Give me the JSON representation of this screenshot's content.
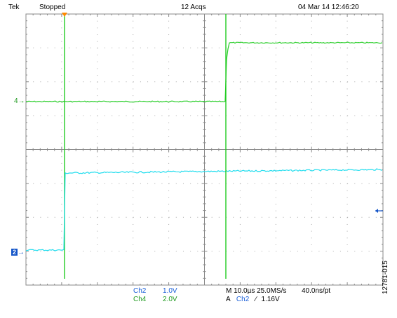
{
  "header": {
    "brand": "Tek",
    "acq_state": "Stopped",
    "acq_count": "12 Acqs",
    "datetime": "04 Mar 14 12:46:20"
  },
  "markers": {
    "ch4_marker": "4",
    "ch2_marker": "2"
  },
  "readouts": {
    "ch2_label": "Ch2",
    "ch2_scale": "1.0V",
    "ch4_label": "Ch4",
    "ch4_scale": "2.0V",
    "timebase_line": "M 10.0µs 25.0MS/s",
    "record_rate": "40.0ns/pt",
    "trigger_prefix": "A",
    "trigger_channel": "Ch2",
    "trigger_slope": "∕",
    "trigger_level": "1.16V"
  },
  "figure_id": "12781-015",
  "colors": {
    "ch4_trace": "#22cc22",
    "ch2_trace": "#22ddee",
    "grid": "#888888",
    "marker_bg": "#1455c8",
    "trigger_arrow": "#ff8a00"
  }
}
